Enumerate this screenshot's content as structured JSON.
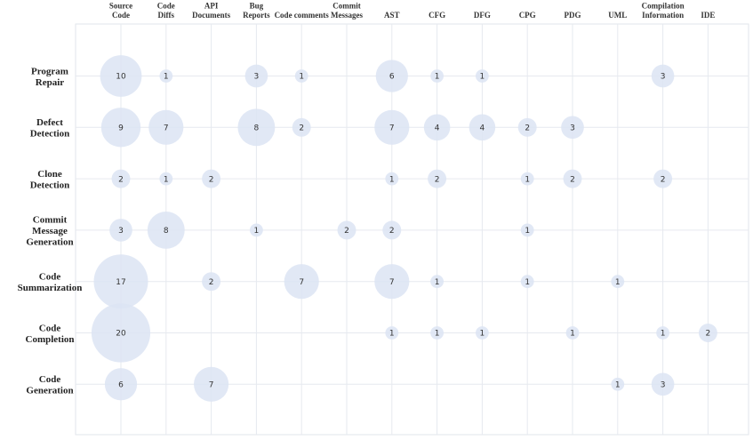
{
  "chart_data": {
    "type": "bubble-matrix",
    "title": "",
    "bubble_color": "#dce4f3",
    "grid": true,
    "columns": [
      [
        "Source",
        "Code"
      ],
      [
        "Code",
        "Diffs"
      ],
      [
        "API",
        "Documents"
      ],
      [
        "Bug",
        "Reports"
      ],
      [
        "Code comments"
      ],
      [
        "Commit",
        "Messages"
      ],
      [
        "AST"
      ],
      [
        "CFG"
      ],
      [
        "DFG"
      ],
      [
        "CPG"
      ],
      [
        "PDG"
      ],
      [
        "UML"
      ],
      [
        "Compilation",
        "Information"
      ],
      [
        "IDE"
      ]
    ],
    "rows": [
      [
        "Program",
        "Repair"
      ],
      [
        "Defect",
        "Detection"
      ],
      [
        "Clone",
        "Detection"
      ],
      [
        "Commit",
        "Message",
        "Generation"
      ],
      [
        "Code",
        "Summarization"
      ],
      [
        "Code",
        "Completion"
      ],
      [
        "Code",
        "Generation"
      ]
    ],
    "values": [
      [
        10,
        1,
        null,
        3,
        1,
        null,
        6,
        1,
        1,
        null,
        null,
        null,
        3,
        null
      ],
      [
        9,
        7,
        null,
        8,
        2,
        null,
        7,
        4,
        4,
        2,
        3,
        null,
        null,
        null
      ],
      [
        2,
        1,
        2,
        null,
        null,
        null,
        1,
        2,
        null,
        1,
        2,
        null,
        2,
        null
      ],
      [
        3,
        8,
        null,
        1,
        null,
        2,
        2,
        null,
        null,
        1,
        null,
        null,
        null,
        null
      ],
      [
        17,
        null,
        2,
        null,
        7,
        null,
        7,
        1,
        null,
        1,
        null,
        1,
        null,
        null
      ],
      [
        20,
        null,
        null,
        null,
        null,
        null,
        1,
        1,
        1,
        null,
        1,
        null,
        1,
        2
      ],
      [
        6,
        null,
        7,
        null,
        null,
        null,
        null,
        null,
        null,
        null,
        null,
        1,
        3,
        null
      ]
    ]
  }
}
